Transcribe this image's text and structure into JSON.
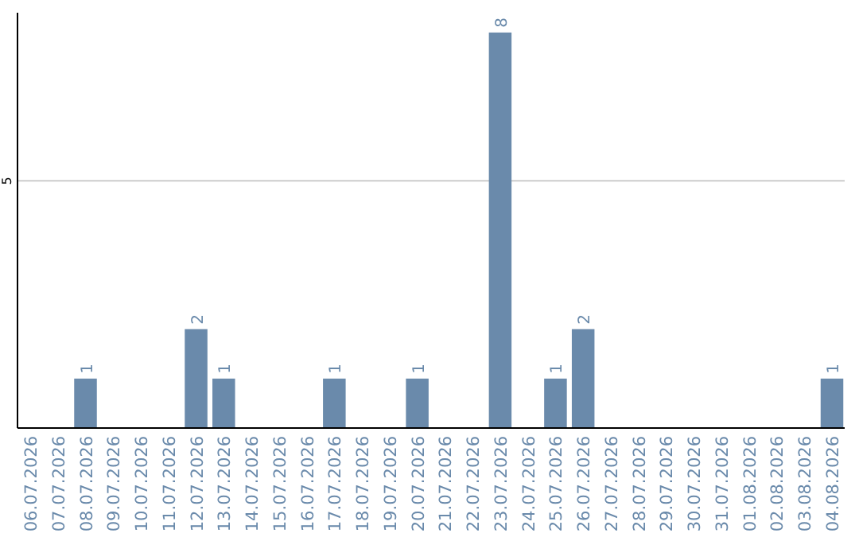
{
  "chart_data": {
    "type": "bar",
    "categories": [
      "06.07.2026",
      "07.07.2026",
      "08.07.2026",
      "09.07.2026",
      "10.07.2026",
      "11.07.2026",
      "12.07.2026",
      "13.07.2026",
      "14.07.2026",
      "15.07.2026",
      "16.07.2026",
      "17.07.2026",
      "18.07.2026",
      "19.07.2026",
      "20.07.2026",
      "21.07.2026",
      "22.07.2026",
      "23.07.2026",
      "24.07.2026",
      "25.07.2026",
      "26.07.2026",
      "27.07.2026",
      "28.07.2026",
      "29.07.2026",
      "30.07.2026",
      "31.07.2026",
      "01.08.2026",
      "02.08.2026",
      "03.08.2026",
      "04.08.2026"
    ],
    "values": [
      0,
      0,
      1,
      0,
      0,
      0,
      2,
      1,
      0,
      0,
      0,
      1,
      0,
      0,
      1,
      0,
      0,
      8,
      0,
      1,
      2,
      0,
      0,
      0,
      0,
      0,
      0,
      0,
      0,
      1
    ],
    "value_labels": [
      null,
      null,
      "1",
      null,
      null,
      null,
      "2",
      "1",
      null,
      null,
      null,
      "1",
      null,
      null,
      "1",
      null,
      null,
      "8",
      null,
      "1",
      "2",
      null,
      null,
      null,
      null,
      null,
      null,
      null,
      null,
      "1"
    ],
    "color": "#6a8aab",
    "ylim": [
      0,
      8.4
    ],
    "yticks": [
      5
    ],
    "grid": "y"
  }
}
